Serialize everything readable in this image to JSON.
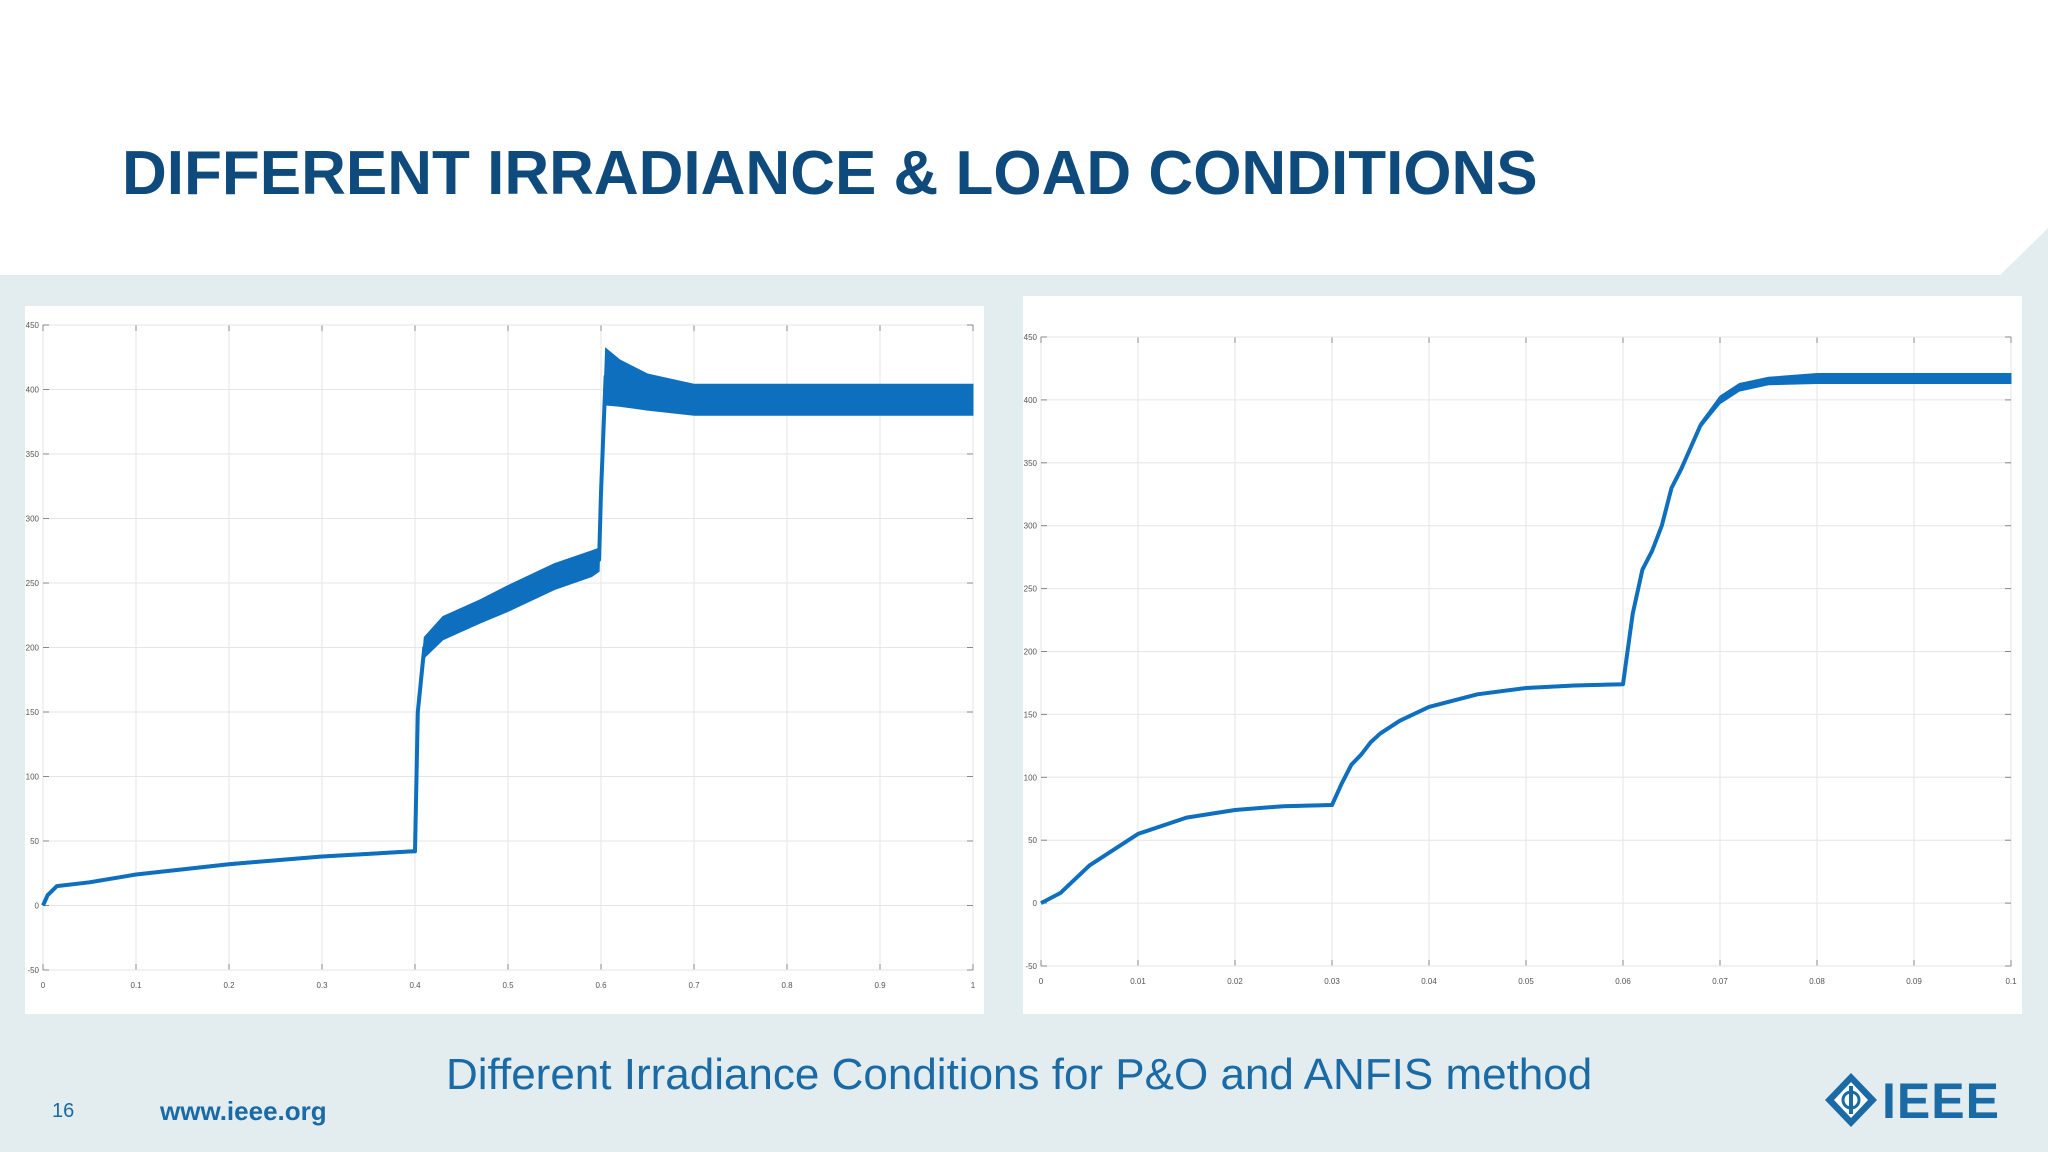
{
  "slide": {
    "title": "DIFFERENT IRRADIANCE & LOAD CONDITIONS",
    "caption": "Different Irradiance Conditions for P&O and ANFIS method",
    "page_number": "16",
    "website": "www.ieee.org",
    "logo_text": "IEEE",
    "colors": {
      "title": "#0f4a7c",
      "accent": "#1a6aa5",
      "trace": "#0f6fbf",
      "band": "#e3ecef"
    }
  },
  "chart_data": [
    {
      "type": "line",
      "title": "",
      "xlabel": "",
      "ylabel": "",
      "xlim": [
        0,
        1
      ],
      "ylim": [
        -50,
        450
      ],
      "xticks": [
        0,
        0.1,
        0.2,
        0.3,
        0.4,
        0.5,
        0.6,
        0.7,
        0.8,
        0.9,
        1
      ],
      "xtick_labels": [
        "0",
        "0.1",
        "0.2",
        "0.3",
        "0.4",
        "0.5",
        "0.6",
        "0.7",
        "0.8",
        "0.9",
        "1"
      ],
      "yticks": [
        -50,
        0,
        50,
        100,
        150,
        200,
        250,
        300,
        350,
        400,
        450
      ],
      "ytick_labels": [
        "-50",
        "0",
        "50",
        "100",
        "150",
        "200",
        "250",
        "300",
        "350",
        "400",
        "450"
      ],
      "grid": true,
      "series": [
        {
          "x": [
            0,
            0.005,
            0.015,
            0.05,
            0.1,
            0.2,
            0.3,
            0.398,
            0.4,
            0.403,
            0.41,
            0.43,
            0.47,
            0.5,
            0.55,
            0.59,
            0.598,
            0.6,
            0.605,
            0.62,
            0.65,
            0.7,
            0.8,
            0.9,
            1.0
          ],
          "y": [
            0,
            8,
            15,
            18,
            24,
            32,
            38,
            42,
            42,
            150,
            200,
            215,
            228,
            238,
            255,
            265,
            268,
            320,
            410,
            405,
            398,
            392,
            392,
            392,
            392
          ],
          "band": [
            0,
            0,
            0,
            1,
            1,
            1,
            1,
            1,
            1,
            2,
            8,
            9,
            9,
            10,
            10,
            10,
            9,
            6,
            22,
            18,
            14,
            12,
            12,
            12,
            12
          ]
        }
      ]
    },
    {
      "type": "line",
      "title": "",
      "xlabel": "",
      "ylabel": "",
      "xlim": [
        0,
        0.1
      ],
      "ylim": [
        -50,
        450
      ],
      "xticks": [
        0,
        0.01,
        0.02,
        0.03,
        0.04,
        0.05,
        0.06,
        0.07,
        0.08,
        0.09,
        0.1
      ],
      "xtick_labels": [
        "0",
        "0.01",
        "0.02",
        "0.03",
        "0.04",
        "0.05",
        "0.06",
        "0.07",
        "0.08",
        "0.09",
        "0.1"
      ],
      "yticks": [
        -50,
        0,
        50,
        100,
        150,
        200,
        250,
        300,
        350,
        400,
        450
      ],
      "ytick_labels": [
        "-50",
        "0",
        "50",
        "100",
        "150",
        "200",
        "250",
        "300",
        "350",
        "400",
        "450"
      ],
      "grid": true,
      "series": [
        {
          "x": [
            0,
            0.002,
            0.005,
            0.01,
            0.015,
            0.02,
            0.025,
            0.03,
            0.031,
            0.032,
            0.033,
            0.034,
            0.035,
            0.037,
            0.04,
            0.045,
            0.05,
            0.055,
            0.06,
            0.061,
            0.062,
            0.063,
            0.064,
            0.065,
            0.066,
            0.068,
            0.07,
            0.072,
            0.075,
            0.08,
            0.09,
            0.1
          ],
          "y": [
            0,
            8,
            30,
            55,
            68,
            74,
            77,
            78,
            95,
            110,
            118,
            128,
            135,
            145,
            156,
            166,
            171,
            173,
            174,
            230,
            265,
            280,
            300,
            330,
            345,
            380,
            400,
            410,
            415,
            417,
            417,
            417
          ],
          "band": [
            0,
            0,
            0,
            0,
            0,
            0,
            1,
            1,
            1,
            1,
            1,
            1,
            1,
            1,
            1,
            1,
            1,
            1,
            1,
            1,
            1,
            1,
            1,
            1,
            1,
            2,
            3,
            3,
            3,
            4,
            4,
            4
          ]
        }
      ]
    }
  ]
}
